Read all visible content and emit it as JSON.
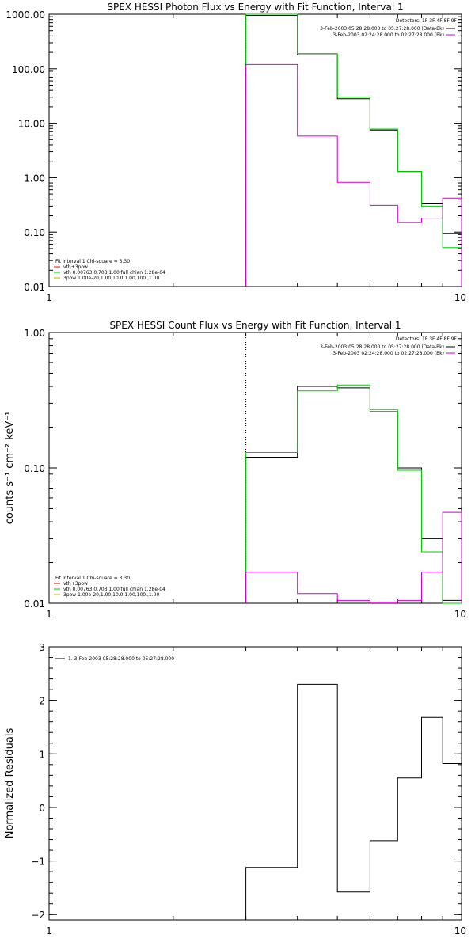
{
  "chart_data": [
    {
      "type": "line",
      "title": "SPEX HESSI Photon Flux vs Energy with Fit Function, Interval 1",
      "xlabel": "",
      "ylabel": "",
      "xscale": "log",
      "yscale": "log",
      "xlim": [
        1,
        10
      ],
      "ylim": [
        0.01,
        1000
      ],
      "x_ticks": [
        {
          "value": 1,
          "label": "1"
        },
        {
          "value": 10,
          "label": "10"
        }
      ],
      "y_ticks": [
        {
          "value": 1000,
          "label": "1000.00"
        },
        {
          "value": 100,
          "label": "100.00"
        },
        {
          "value": 10,
          "label": "10.00"
        },
        {
          "value": 1,
          "label": "1.00"
        },
        {
          "value": 0.1,
          "label": "0.10"
        },
        {
          "value": 0.01,
          "label": "0.01"
        }
      ],
      "detectors_text": "Detectors: 1F 3F 4F 8F 9F",
      "legend_right": [
        {
          "text": "3-Feb-2003 05:28:28.000 to 05:27:28.000 (Data-Bk)",
          "color": "#000000"
        },
        {
          "text": "3-Feb-2003 02:24:28.000 to 02:27:28.000 (Bk)",
          "color": "#cc00cc"
        }
      ],
      "legend_left": [
        {
          "text": "Fit Interval 1    Chi-square = 3.30",
          "color": "#000000"
        },
        {
          "text": "vth+3pow",
          "color": "#ff0000"
        },
        {
          "text": "vth 0.00763,0.703,1.00   full chian 1.28e-04",
          "color": "#00cc00"
        },
        {
          "text": "3pow 1.00e-20,1.00,10.0,1.00,100.,1.00",
          "color": "#d4a000"
        }
      ],
      "marker_x": 3.0,
      "series": [
        {
          "color": "#000000",
          "edges": [
            3.0,
            4.0,
            5.0,
            6.0,
            7.0,
            8.0,
            9.0,
            10.0
          ],
          "values": [
            950,
            180,
            28,
            7.5,
            1.3,
            0.33,
            0.095
          ]
        },
        {
          "color": "#00cc00",
          "edges": [
            3.0,
            4.0,
            5.0,
            6.0,
            7.0,
            8.0,
            9.0,
            10.0
          ],
          "values": [
            1000,
            190,
            30,
            7.8,
            1.3,
            0.3,
            0.052
          ]
        },
        {
          "color": "#cc00cc",
          "edges": [
            3.0,
            4.0,
            5.0,
            6.0,
            7.0,
            8.0,
            9.0,
            10.0
          ],
          "values": [
            120,
            5.8,
            0.82,
            0.31,
            0.15,
            0.18,
            0.42
          ]
        }
      ]
    },
    {
      "type": "line",
      "title": "SPEX HESSI Count Flux vs Energy with Fit Function, Interval 1",
      "xlabel": "",
      "ylabel": "counts s⁻¹ cm⁻² keV⁻¹",
      "xscale": "log",
      "yscale": "log",
      "xlim": [
        1,
        10
      ],
      "ylim": [
        0.01,
        1.0
      ],
      "x_ticks": [
        {
          "value": 1,
          "label": "1"
        },
        {
          "value": 10,
          "label": "10"
        }
      ],
      "y_ticks": [
        {
          "value": 1.0,
          "label": "1.00"
        },
        {
          "value": 0.1,
          "label": "0.10"
        },
        {
          "value": 0.01,
          "label": "0.01"
        }
      ],
      "detectors_text": "Detectors: 1F 3F 4F 8F 9F",
      "legend_right": [
        {
          "text": "3-Feb-2003 05:28:28.000 to 05:27:28.000 (Data-Bk)",
          "color": "#000000"
        },
        {
          "text": "3-Feb-2003 02:24:28.000 to 02:27:28.000 (Bk)",
          "color": "#cc00cc"
        }
      ],
      "legend_left": [
        {
          "text": "Fit Interval 1    Chi-square = 3.30",
          "color": "#000000"
        },
        {
          "text": "vth+3pow",
          "color": "#ff0000"
        },
        {
          "text": "vth 0.00763,0.703,1.00   full chian 1.28e-04",
          "color": "#00cc00"
        },
        {
          "text": "3pow 1.00e-20,1.00,10.0,1.00,100.,1.00",
          "color": "#d4a000"
        }
      ],
      "marker_x": 3.0,
      "series": [
        {
          "color": "#000000",
          "edges": [
            3.0,
            4.0,
            5.0,
            6.0,
            7.0,
            8.0,
            9.0,
            10.0
          ],
          "values": [
            0.12,
            0.4,
            0.39,
            0.26,
            0.1,
            0.03,
            0.0105
          ]
        },
        {
          "color": "#00cc00",
          "edges": [
            3.0,
            4.0,
            5.0,
            6.0,
            7.0,
            8.0,
            9.0,
            10.0
          ],
          "values": [
            0.13,
            0.37,
            0.41,
            0.27,
            0.096,
            0.024,
            0.0098
          ]
        },
        {
          "color": "#cc00cc",
          "edges": [
            3.0,
            4.0,
            5.0,
            6.0,
            7.0,
            8.0,
            9.0,
            10.0
          ],
          "values": [
            0.017,
            0.0118,
            0.0105,
            0.0102,
            0.0105,
            0.017,
            0.047
          ]
        }
      ]
    },
    {
      "type": "line",
      "title": "",
      "xlabel": "",
      "ylabel": "Normalized Residuals",
      "xscale": "log",
      "yscale": "linear",
      "xlim": [
        1,
        10
      ],
      "ylim": [
        -2.1,
        3.0
      ],
      "x_ticks": [
        {
          "value": 1,
          "label": "1"
        },
        {
          "value": 10,
          "label": "10"
        }
      ],
      "y_ticks": [
        {
          "value": 3,
          "label": "3"
        },
        {
          "value": 2,
          "label": "2"
        },
        {
          "value": 1,
          "label": "1"
        },
        {
          "value": 0,
          "label": "0"
        },
        {
          "value": -1,
          "label": "−1"
        },
        {
          "value": -2,
          "label": "−2"
        }
      ],
      "legend_left": [
        {
          "text": "1.  3-Feb-2003 05:28:28.000 to 05:27:28.000",
          "color": "#000000"
        }
      ],
      "series": [
        {
          "color": "#000000",
          "edges": [
            3.0,
            4.0,
            5.0,
            6.0,
            7.0,
            8.0,
            9.0,
            10.0
          ],
          "values": [
            -1.12,
            2.3,
            -1.58,
            -0.62,
            0.55,
            1.68,
            0.82
          ]
        }
      ]
    }
  ]
}
